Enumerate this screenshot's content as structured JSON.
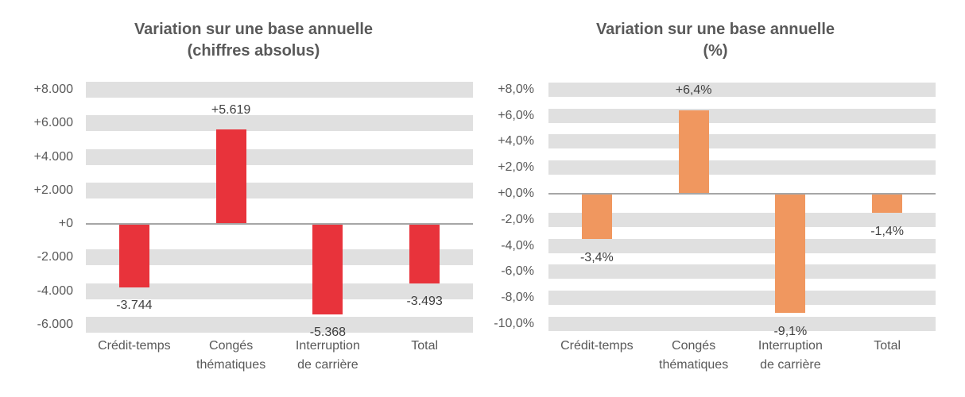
{
  "style": {
    "background": "#ffffff",
    "stripe_color": "#e0e0e0",
    "axis_line_color": "#a6a6a6",
    "title_color": "#595959",
    "tick_label_color": "#595959",
    "category_label_color": "#595959",
    "data_label_color": "#404040",
    "accent_red": "#e8333b",
    "accent_orange": "#f0975f"
  },
  "chart_data": [
    {
      "type": "bar",
      "title": "Variation sur une base annuelle",
      "subtitle": "(chiffres absolus)",
      "xlabel": "",
      "ylabel": "",
      "ylim": [
        -6000,
        8000
      ],
      "grid": "striped-horizontal",
      "legend": "none",
      "bar_color": "#e8333b",
      "categories": [
        "Crédit-temps",
        "Congés thématiques",
        "Interruption de carrière",
        "Total"
      ],
      "category_lines": [
        [
          "Crédit-temps"
        ],
        [
          "Congés",
          "thématiques"
        ],
        [
          "Interruption",
          "de carrière"
        ],
        [
          "Total"
        ]
      ],
      "values": [
        -3744,
        5619,
        -5368,
        -3493
      ],
      "data_labels": [
        "-3.744",
        "+5.619",
        "-5.368",
        "-3.493"
      ],
      "yticks": [
        {
          "value": 8000,
          "label": "+8.000"
        },
        {
          "value": 6000,
          "label": "+6.000"
        },
        {
          "value": 4000,
          "label": "+4.000"
        },
        {
          "value": 2000,
          "label": "+2.000"
        },
        {
          "value": 0,
          "label": "+0"
        },
        {
          "value": -2000,
          "label": "-2.000"
        },
        {
          "value": -4000,
          "label": "-4.000"
        },
        {
          "value": -6000,
          "label": "-6.000"
        }
      ]
    },
    {
      "type": "bar",
      "title": "Variation sur une base annuelle",
      "subtitle": "(%)",
      "xlabel": "",
      "ylabel": "",
      "ylim": [
        -10,
        8
      ],
      "grid": "striped-horizontal",
      "legend": "none",
      "bar_color": "#f0975f",
      "categories": [
        "Crédit-temps",
        "Congés thématiques",
        "Interruption de carrière",
        "Total"
      ],
      "category_lines": [
        [
          "Crédit-temps"
        ],
        [
          "Congés",
          "thématiques"
        ],
        [
          "Interruption",
          "de carrière"
        ],
        [
          "Total"
        ]
      ],
      "values": [
        -3.4,
        6.4,
        -9.1,
        -1.4
      ],
      "data_labels": [
        "-3,4%",
        "+6,4%",
        "-9,1%",
        "-1,4%"
      ],
      "yticks": [
        {
          "value": 8,
          "label": "+8,0%"
        },
        {
          "value": 6,
          "label": "+6,0%"
        },
        {
          "value": 4,
          "label": "+4,0%"
        },
        {
          "value": 2,
          "label": "+2,0%"
        },
        {
          "value": 0,
          "label": "+0,0%"
        },
        {
          "value": -2,
          "label": "-2,0%"
        },
        {
          "value": -4,
          "label": "-4,0%"
        },
        {
          "value": -6,
          "label": "-6,0%"
        },
        {
          "value": -8,
          "label": "-8,0%"
        },
        {
          "value": -10,
          "label": "-10,0%"
        }
      ]
    }
  ]
}
